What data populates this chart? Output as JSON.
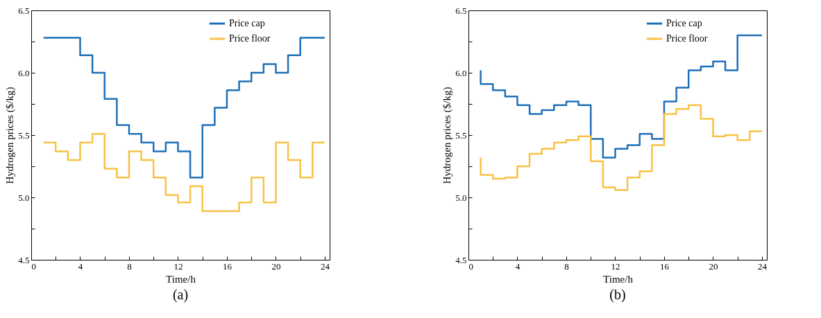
{
  "chart_data": [
    {
      "type": "step",
      "xlabel": "Time/h",
      "ylabel": "Hydrogen prices ($/kg)",
      "annotations": [
        "(a)"
      ],
      "x": [
        1,
        2,
        3,
        4,
        5,
        6,
        7,
        8,
        9,
        10,
        11,
        12,
        13,
        14,
        15,
        16,
        17,
        18,
        19,
        20,
        21,
        22,
        23,
        24
      ],
      "series": [
        {
          "name": "Price cap",
          "color": "#1f6fb8",
          "values": [
            6.28,
            6.28,
            6.28,
            6.28,
            6.14,
            6.0,
            5.79,
            5.58,
            5.51,
            5.44,
            5.37,
            5.44,
            5.37,
            5.16,
            5.58,
            5.72,
            5.86,
            5.93,
            6.0,
            6.07,
            6.0,
            6.14,
            6.28,
            6.28
          ]
        },
        {
          "name": "Price floor",
          "color": "#f7c244",
          "values": [
            5.44,
            5.44,
            5.37,
            5.3,
            5.44,
            5.51,
            5.23,
            5.16,
            5.37,
            5.3,
            5.16,
            5.02,
            4.96,
            5.09,
            4.89,
            4.89,
            4.89,
            4.96,
            5.16,
            4.96,
            5.44,
            5.3,
            5.16,
            5.44
          ]
        }
      ],
      "xlim": [
        0,
        24.4
      ],
      "xticks": [
        0,
        {
          "value": 2,
          "label": null
        },
        4,
        {
          "value": 6,
          "label": null
        },
        8,
        {
          "value": 10,
          "label": null
        },
        12,
        {
          "value": 14,
          "label": null
        },
        16,
        {
          "value": 18,
          "label": null
        },
        20,
        {
          "value": 22,
          "label": null
        },
        24
      ],
      "ylim": [
        4.5,
        6.5
      ],
      "yticks": [
        {
          "value": 4.5,
          "label": "4.5"
        },
        {
          "value": 4.75,
          "label": null
        },
        {
          "value": 5,
          "label": "5.0"
        },
        {
          "value": 5.25,
          "label": null
        },
        {
          "value": 5.5,
          "label": "5.5"
        },
        {
          "value": 5.75,
          "label": null
        },
        {
          "value": 6,
          "label": "6.0"
        },
        {
          "value": 6.25,
          "label": null
        },
        {
          "value": 6.5,
          "label": "6.5"
        }
      ],
      "grid": false,
      "legend": "top right"
    },
    {
      "type": "step",
      "xlabel": "Time/h",
      "ylabel": "Hydrogen prices ($/kg)",
      "annotations": [
        "(b)"
      ],
      "x": [
        1,
        2,
        3,
        4,
        5,
        6,
        7,
        8,
        9,
        10,
        11,
        12,
        13,
        14,
        15,
        16,
        17,
        18,
        19,
        20,
        21,
        22,
        23,
        24
      ],
      "series": [
        {
          "name": "Price cap",
          "color": "#1f6fb8",
          "values": [
            6.02,
            5.91,
            5.86,
            5.81,
            5.74,
            5.67,
            5.7,
            5.74,
            5.77,
            5.74,
            5.47,
            5.32,
            5.39,
            5.42,
            5.51,
            5.47,
            5.77,
            5.88,
            6.02,
            6.05,
            6.09,
            6.02,
            6.3,
            6.3
          ]
        },
        {
          "name": "Price floor",
          "color": "#f7c244",
          "values": [
            5.32,
            5.18,
            5.15,
            5.16,
            5.25,
            5.35,
            5.39,
            5.44,
            5.46,
            5.49,
            5.29,
            5.08,
            5.06,
            5.16,
            5.21,
            5.42,
            5.67,
            5.71,
            5.74,
            5.63,
            5.49,
            5.5,
            5.46,
            5.53
          ]
        }
      ],
      "xlim": [
        0,
        24.4
      ],
      "xticks": [
        0,
        {
          "value": 2,
          "label": null
        },
        4,
        {
          "value": 6,
          "label": null
        },
        8,
        {
          "value": 10,
          "label": null
        },
        12,
        {
          "value": 14,
          "label": null
        },
        16,
        {
          "value": 18,
          "label": null
        },
        20,
        {
          "value": 22,
          "label": null
        },
        24
      ],
      "ylim": [
        4.5,
        6.5
      ],
      "yticks": [
        {
          "value": 4.5,
          "label": "4.5"
        },
        {
          "value": 4.75,
          "label": null
        },
        {
          "value": 5,
          "label": "5.0"
        },
        {
          "value": 5.25,
          "label": null
        },
        {
          "value": 5.5,
          "label": "5.5"
        },
        {
          "value": 5.75,
          "label": null
        },
        {
          "value": 6,
          "label": "6.0"
        },
        {
          "value": 6.25,
          "label": null
        },
        {
          "value": 6.5,
          "label": "6.5"
        }
      ],
      "grid": false,
      "legend": "top right"
    }
  ]
}
